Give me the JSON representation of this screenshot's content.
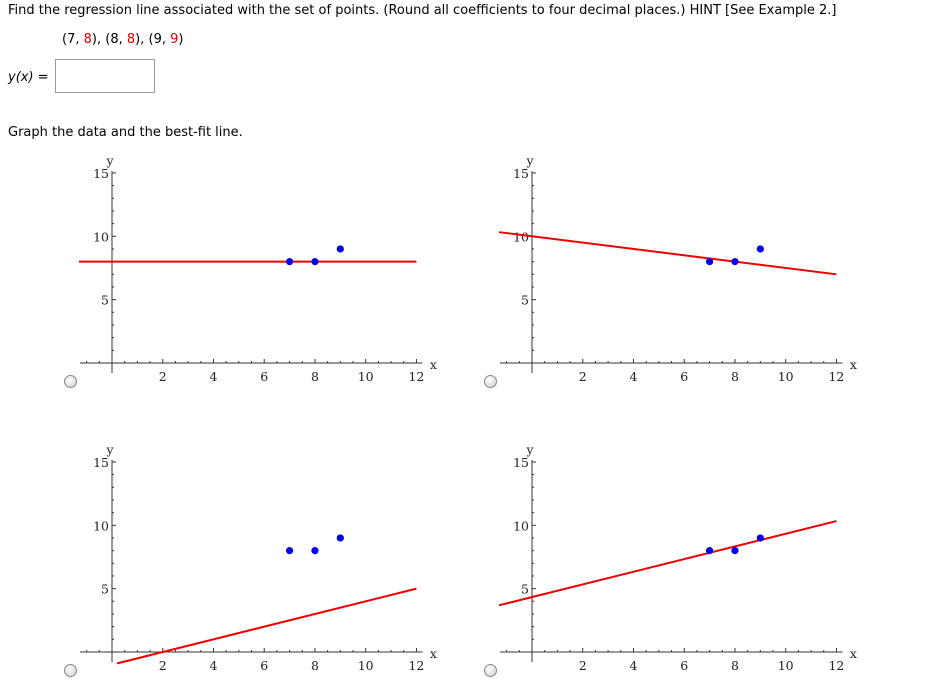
{
  "question": "Find the regression line associated with the set of points. (Round all coefficients to four decimal places.) HINT [See Example 2.]",
  "points_text": [
    {
      "open": "(",
      "x": "7",
      ",": ", ",
      "y": "8",
      "close": ")"
    },
    {
      "open": "(",
      "x": "8",
      ",": ", ",
      "y": "8",
      "close": ")"
    },
    {
      "open": "(",
      "x": "9",
      ",": ", ",
      "y": "9",
      "close": ")"
    }
  ],
  "answer": {
    "label": "y(x)",
    "equals": "=",
    "value": ""
  },
  "graph_prompt": "Graph the data and the best-fit line.",
  "colors": {
    "line": "#ee0000",
    "points": "#0000ee",
    "point_y_values": "#e00000"
  },
  "chart_data": [
    {
      "type": "scatter+line",
      "xlabel": "x",
      "ylabel": "y",
      "xlim": [
        -1.3,
        12
      ],
      "ylim": [
        0,
        15
      ],
      "x_ticks": [
        "2",
        "4",
        "6",
        "8",
        "10",
        "12"
      ],
      "y_ticks": [
        "5",
        "10",
        "15"
      ],
      "points": [
        [
          7,
          8
        ],
        [
          8,
          8
        ],
        [
          9,
          9
        ]
      ],
      "line": {
        "slope": 0,
        "intercept": 8
      },
      "selected": false
    },
    {
      "type": "scatter+line",
      "xlabel": "x",
      "ylabel": "y",
      "xlim": [
        -1.3,
        12
      ],
      "ylim": [
        0,
        15
      ],
      "x_ticks": [
        "2",
        "4",
        "6",
        "8",
        "10",
        "12"
      ],
      "y_ticks": [
        "5",
        "10",
        "15"
      ],
      "points": [
        [
          7,
          8
        ],
        [
          8,
          8
        ],
        [
          9,
          9
        ]
      ],
      "line": {
        "slope": -0.25,
        "intercept": 10
      },
      "selected": false
    },
    {
      "type": "scatter+line",
      "xlabel": "x",
      "ylabel": "y",
      "xlim": [
        -1.3,
        12
      ],
      "ylim": [
        0,
        15
      ],
      "x_ticks": [
        "2",
        "4",
        "6",
        "8",
        "10",
        "12"
      ],
      "y_ticks": [
        "5",
        "10",
        "15"
      ],
      "points": [
        [
          7,
          8
        ],
        [
          8,
          8
        ],
        [
          9,
          9
        ]
      ],
      "line": {
        "slope": 0.5,
        "intercept": -1
      },
      "selected": false
    },
    {
      "type": "scatter+line",
      "xlabel": "x",
      "ylabel": "y",
      "xlim": [
        -1.3,
        12
      ],
      "ylim": [
        0,
        15
      ],
      "x_ticks": [
        "2",
        "4",
        "6",
        "8",
        "10",
        "12"
      ],
      "y_ticks": [
        "5",
        "10",
        "15"
      ],
      "points": [
        [
          7,
          8
        ],
        [
          8,
          8
        ],
        [
          9,
          9
        ]
      ],
      "line": {
        "slope": 0.5,
        "intercept": 4.3333
      },
      "selected": false
    }
  ]
}
